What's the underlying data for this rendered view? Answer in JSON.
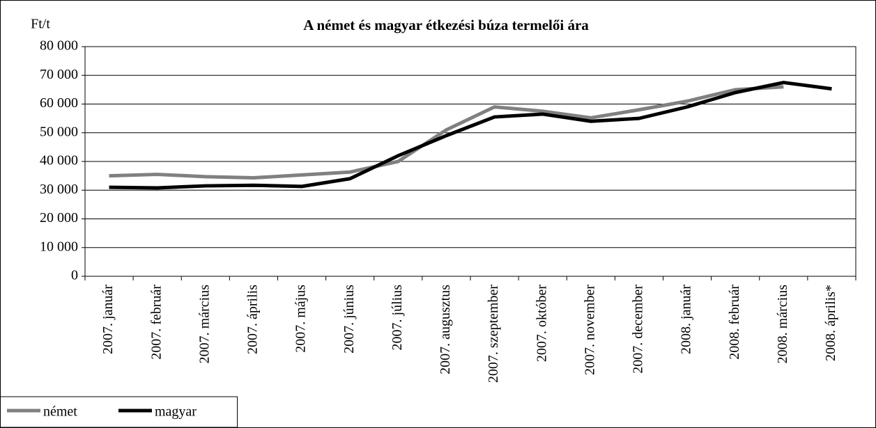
{
  "chart_data": {
    "type": "line",
    "title": "A német és magyar étkezési búza termelői ára",
    "y_label": "Ft/t",
    "categories": [
      "2007. január",
      "2007. február",
      "2007. március",
      "2007. április",
      "2007. május",
      "2007. június",
      "2007. július",
      "2007. augusztus",
      "2007. szeptember",
      "2007. október",
      "2007. november",
      "2007. december",
      "2008. január",
      "2008. február",
      "2008. március",
      "2008. április*"
    ],
    "series": [
      {
        "name": "német",
        "color": "#808080",
        "values": [
          35000,
          35500,
          34700,
          34300,
          35300,
          36300,
          40000,
          51000,
          59000,
          57500,
          55200,
          58000,
          61000,
          65000,
          66000,
          null
        ]
      },
      {
        "name": "magyar",
        "color": "#000000",
        "values": [
          31000,
          30800,
          31500,
          31700,
          31300,
          34000,
          42000,
          49000,
          55500,
          56500,
          54000,
          55000,
          59000,
          64000,
          67500,
          65300
        ]
      }
    ],
    "ylim": [
      0,
      80000
    ],
    "yticks": [
      0,
      {
        "value": 10000,
        "label": "10 000"
      },
      {
        "value": 20000,
        "label": "20 000"
      },
      {
        "value": 30000,
        "label": "30 000"
      },
      {
        "value": 40000,
        "label": "40 000"
      },
      {
        "value": 50000,
        "label": "50 000"
      },
      {
        "value": 60000,
        "label": "60 000"
      },
      {
        "value": 70000,
        "label": "70 000"
      },
      {
        "value": 80000,
        "label": "80 000"
      }
    ],
    "grid": true,
    "legend": "bottom-left"
  }
}
